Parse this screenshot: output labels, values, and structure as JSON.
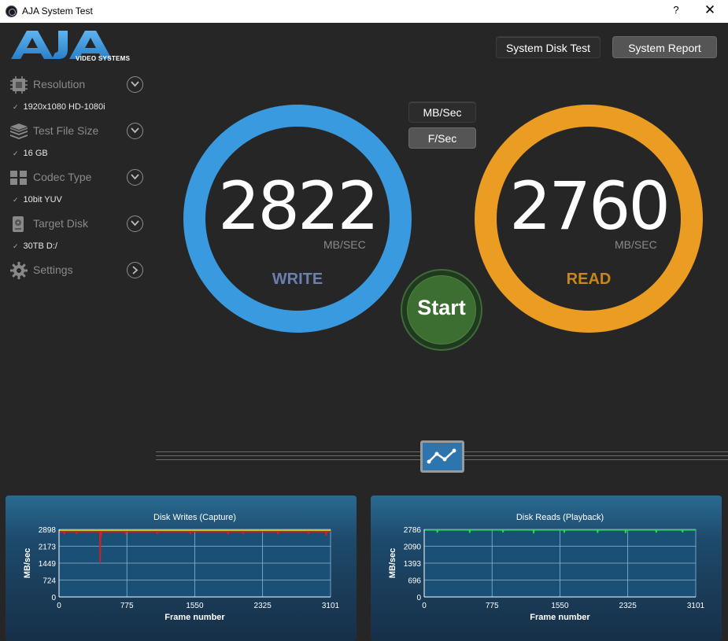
{
  "window": {
    "title": "AJA System Test",
    "help_glyph": "?",
    "close_glyph": "✕"
  },
  "logo": {
    "text": "AJA",
    "subtext": "VIDEO SYSTEMS"
  },
  "sidebar": {
    "items": [
      {
        "label": "Resolution",
        "value": "1920x1080 HD-1080i",
        "icon": "chip-icon"
      },
      {
        "label": "Test File Size",
        "value": "16 GB",
        "icon": "stack-icon"
      },
      {
        "label": "Codec Type",
        "value": "10bit YUV",
        "icon": "codec-icon"
      },
      {
        "label": "Target Disk",
        "value": "30TB D:/",
        "icon": "disk-icon"
      },
      {
        "label": "Settings",
        "value": "",
        "icon": "gear-icon"
      }
    ],
    "check_glyph": "✓"
  },
  "toolbar": {
    "system_disk_test": "System Disk Test",
    "system_report": "System Report"
  },
  "units": {
    "mb_sec": "MB/Sec",
    "f_sec": "F/Sec"
  },
  "write": {
    "value": "2822",
    "unit": "MB/SEC",
    "label": "WRITE",
    "color": "#3a9ae0"
  },
  "read": {
    "value": "2760",
    "unit": "MB/SEC",
    "label": "READ",
    "color": "#eb9c22"
  },
  "start": {
    "label": "Start",
    "color": "#3c6d31"
  },
  "chart_data": [
    {
      "type": "line",
      "title": "Disk Writes (Capture)",
      "xlabel": "Frame number",
      "ylabel": "MB/sec",
      "xlim": [
        0,
        3101
      ],
      "ylim": [
        0,
        2898
      ],
      "xticks": [
        0,
        775,
        1550,
        2325,
        3101
      ],
      "yticks": [
        0,
        724,
        1449,
        2173,
        2898
      ],
      "series": [
        {
          "color": "#d42020",
          "baseline": 2800,
          "dips": [
            [
              60,
              2680
            ],
            [
              200,
              2700
            ],
            [
              470,
              1449
            ],
            [
              480,
              2600
            ],
            [
              760,
              2720
            ],
            [
              1120,
              2700
            ],
            [
              1500,
              2690
            ],
            [
              1930,
              2680
            ],
            [
              2100,
              2700
            ],
            [
              2500,
              2690
            ],
            [
              2850,
              2700
            ],
            [
              3050,
              2620
            ]
          ]
        },
        {
          "color": "#e8d420",
          "baseline": 2860,
          "dips": []
        }
      ]
    },
    {
      "type": "line",
      "title": "Disk Reads (Playback)",
      "xlabel": "Frame number",
      "ylabel": "MB/sec",
      "xlim": [
        0,
        3101
      ],
      "ylim": [
        0,
        2786
      ],
      "xticks": [
        0,
        775,
        1550,
        2325,
        3101
      ],
      "yticks": [
        0,
        696,
        1393,
        2090,
        2786
      ],
      "series": [
        {
          "color": "#22e040",
          "baseline": 2760,
          "dips": [
            [
              150,
              2650
            ],
            [
              520,
              2640
            ],
            [
              900,
              2660
            ],
            [
              1250,
              2620
            ],
            [
              1600,
              2650
            ],
            [
              1980,
              2640
            ],
            [
              2300,
              2630
            ],
            [
              2650,
              2650
            ],
            [
              2950,
              2660
            ]
          ]
        }
      ]
    }
  ]
}
